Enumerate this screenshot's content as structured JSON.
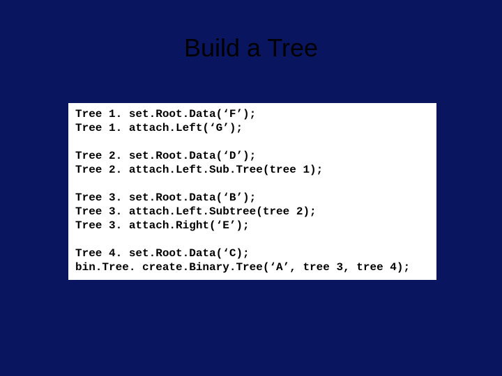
{
  "slide": {
    "title": "Build a Tree",
    "background_color": "#0a1560",
    "title_color": "#000000",
    "title_fontsize": 36,
    "code_box": {
      "background_color": "#ffffff",
      "text_color": "#000000",
      "font_family": "Courier New",
      "font_weight": "bold",
      "fontsize": 16,
      "blocks": [
        {
          "lines": [
            "Tree 1. set.Root.Data(‘F’);",
            "Tree 1. attach.Left(‘G’);"
          ]
        },
        {
          "lines": [
            "Tree 2. set.Root.Data(‘D’);",
            "Tree 2. attach.Left.Sub.Tree(tree 1);"
          ]
        },
        {
          "lines": [
            "Tree 3. set.Root.Data(‘B’);",
            "Tree 3. attach.Left.Subtree(tree 2);",
            "Tree 3. attach.Right(‘E’);"
          ]
        },
        {
          "lines": [
            "Tree 4. set.Root.Data(‘C);",
            "bin.Tree. create.Binary.Tree(‘A’, tree 3, tree 4);"
          ]
        }
      ]
    }
  }
}
